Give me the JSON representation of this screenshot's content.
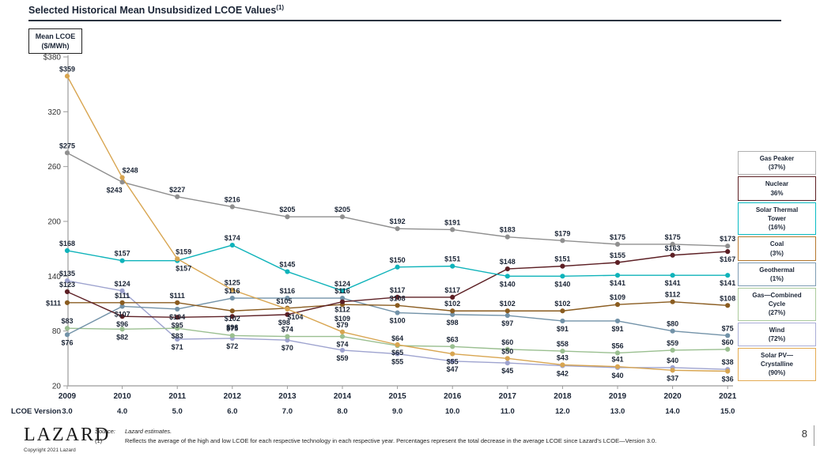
{
  "header": {
    "title": "Selected Historical Mean Unsubsidized LCOE Values",
    "footnote_ref": "(1)"
  },
  "y_axis": {
    "box_line1": "Mean LCOE",
    "box_line2": "($/MWh)",
    "ticks": [
      {
        "label": "$380",
        "value": 380
      },
      {
        "label": "320",
        "value": 320
      },
      {
        "label": "260",
        "value": 260
      },
      {
        "label": "200",
        "value": 200
      },
      {
        "label": "140",
        "value": 140
      },
      {
        "label": "80",
        "value": 80
      },
      {
        "label": "20",
        "value": 20
      }
    ]
  },
  "x_axis": {
    "years": [
      "2009",
      "2010",
      "2011",
      "2012",
      "2013",
      "2014",
      "2015",
      "2016",
      "2017",
      "2018",
      "2019",
      "2020",
      "2021"
    ],
    "version_row_label": "LCOE Version",
    "versions": [
      "3.0",
      "4.0",
      "5.0",
      "6.0",
      "7.0",
      "8.0",
      "9.0",
      "10.0",
      "11.0",
      "12.0",
      "13.0",
      "14.0",
      "15.0"
    ]
  },
  "chart_data": {
    "type": "line",
    "title": "Selected Historical Mean Unsubsidized LCOE Values",
    "ylabel": "Mean LCOE ($/MWh)",
    "ylim": [
      20,
      380
    ],
    "grid": false,
    "legend_position": "right",
    "x": [
      2009,
      2010,
      2011,
      2012,
      2013,
      2014,
      2015,
      2016,
      2017,
      2018,
      2019,
      2020,
      2021
    ],
    "x_versions": [
      "3.0",
      "4.0",
      "5.0",
      "6.0",
      "7.0",
      "8.0",
      "9.0",
      "10.0",
      "11.0",
      "12.0",
      "13.0",
      "14.0",
      "15.0"
    ],
    "series": [
      {
        "id": "gas_peaker",
        "name": "Gas Peaker",
        "decrease_since_v3": "(37%)",
        "legend_lines": [
          "Gas Peaker",
          "(37%)"
        ],
        "color": "#8f8f8f",
        "legend_border_color": "#b0b0b0",
        "values": [
          275,
          243,
          227,
          216,
          205,
          205,
          192,
          191,
          183,
          179,
          175,
          175,
          173
        ]
      },
      {
        "id": "nuclear",
        "name": "Nuclear",
        "decrease_since_v3": "36%",
        "legend_lines": [
          "Nuclear",
          "36%"
        ],
        "color": "#5d2025",
        "legend_border_color": "#5d2025",
        "values": [
          123,
          96,
          95,
          96,
          98,
          112,
          117,
          117,
          148,
          151,
          155,
          163,
          167
        ]
      },
      {
        "id": "solar_thermal_tower",
        "name": "Solar Thermal Tower",
        "decrease_since_v3": "(16%)",
        "legend_lines": [
          "Solar Thermal",
          "Tower",
          "(16%)"
        ],
        "color": "#0fb3ba",
        "legend_border_color": "#09bcc4",
        "values": [
          168,
          157,
          157,
          174,
          145,
          124,
          150,
          151,
          140,
          140,
          141,
          141,
          141
        ]
      },
      {
        "id": "coal",
        "name": "Coal",
        "decrease_since_v3": "(3%)",
        "legend_lines": [
          "Coal",
          "(3%)"
        ],
        "color": "#8a5c20",
        "legend_border_color": "#b5782e",
        "values": [
          111,
          111,
          111,
          102,
          105,
          109,
          108,
          102,
          102,
          102,
          109,
          112,
          108
        ]
      },
      {
        "id": "geothermal",
        "name": "Geothermal",
        "decrease_since_v3": "(1%)",
        "legend_lines": [
          "Geothermal",
          "(1%)"
        ],
        "color": "#7292a8",
        "legend_border_color": "#7e9cb3",
        "values": [
          76,
          107,
          104,
          116,
          116,
          116,
          100,
          98,
          97,
          91,
          91,
          80,
          75
        ]
      },
      {
        "id": "gas_combined_cycle",
        "name": "Gas—Combined Cycle",
        "decrease_since_v3": "(27%)",
        "legend_lines": [
          "Gas—Combined",
          "Cycle",
          "(27%)"
        ],
        "color": "#9abf90",
        "legend_border_color": "#abcb9c",
        "values": [
          83,
          82,
          83,
          75,
          74,
          74,
          64,
          63,
          60,
          58,
          56,
          59,
          60
        ]
      },
      {
        "id": "wind",
        "name": "Wind",
        "decrease_since_v3": "(72%)",
        "legend_lines": [
          "Wind",
          "(72%)"
        ],
        "color": "#9ea3cf",
        "legend_border_color": "#a9add6",
        "values": [
          135,
          124,
          71,
          72,
          70,
          59,
          55,
          47,
          45,
          42,
          40,
          40,
          38
        ]
      },
      {
        "id": "solar_pv_crystalline",
        "name": "Solar PV—Crystalline",
        "decrease_since_v3": "(90%)",
        "legend_lines": [
          "Solar PV—",
          "Crystalline",
          "(90%)"
        ],
        "color": "#d8a550",
        "legend_border_color": "#e4ab52",
        "values": [
          359,
          248,
          159,
          125,
          104,
          79,
          65,
          55,
          50,
          43,
          41,
          37,
          36
        ]
      }
    ]
  },
  "footer": {
    "logo": "LAZARD",
    "copyright": "Copyright 2021 Lazard",
    "source_label": "Source:",
    "source_text": "Lazard estimates.",
    "footnote_marker": "(1)",
    "footnote_text": "Reflects the average of the high and low LCOE for each respective technology in each respective year. Percentages represent the total decrease in the average LCOE since Lazard's LCOE—Version 3.0.",
    "page_number": "8"
  }
}
